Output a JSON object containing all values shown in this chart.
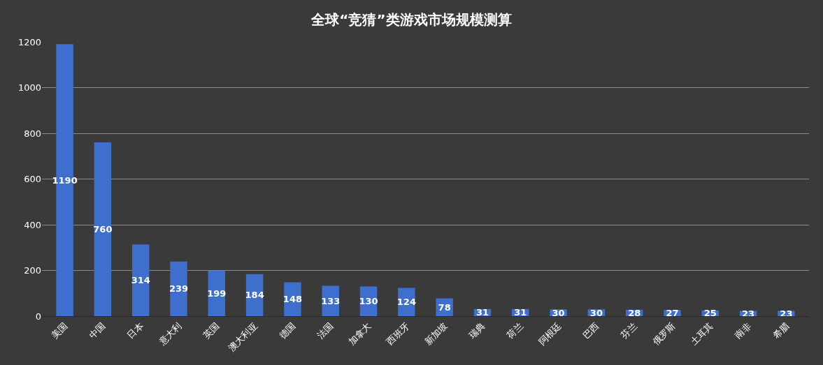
{
  "chart_data": {
    "type": "bar",
    "title": "全球“竞猜”类游戏市场规模测算",
    "categories": [
      "美国",
      "中国",
      "日本",
      "意大利",
      "英国",
      "澳大利亚",
      "德国",
      "法国",
      "加拿大",
      "西班牙",
      "新加坡",
      "瑞典",
      "荷兰",
      "阿根廷",
      "巴西",
      "芬兰",
      "俄罗斯",
      "土耳其",
      "南非",
      "希腊"
    ],
    "values": [
      1190,
      760,
      314,
      239,
      199,
      184,
      148,
      133,
      130,
      124,
      78,
      31,
      31,
      30,
      30,
      28,
      27,
      25,
      23,
      23
    ],
    "color": "#3f6fcc",
    "ylim": [
      0,
      1200
    ],
    "yticks": [
      0,
      200,
      400,
      600,
      800,
      1000,
      1200
    ],
    "grid": "y",
    "data_labels": true
  }
}
